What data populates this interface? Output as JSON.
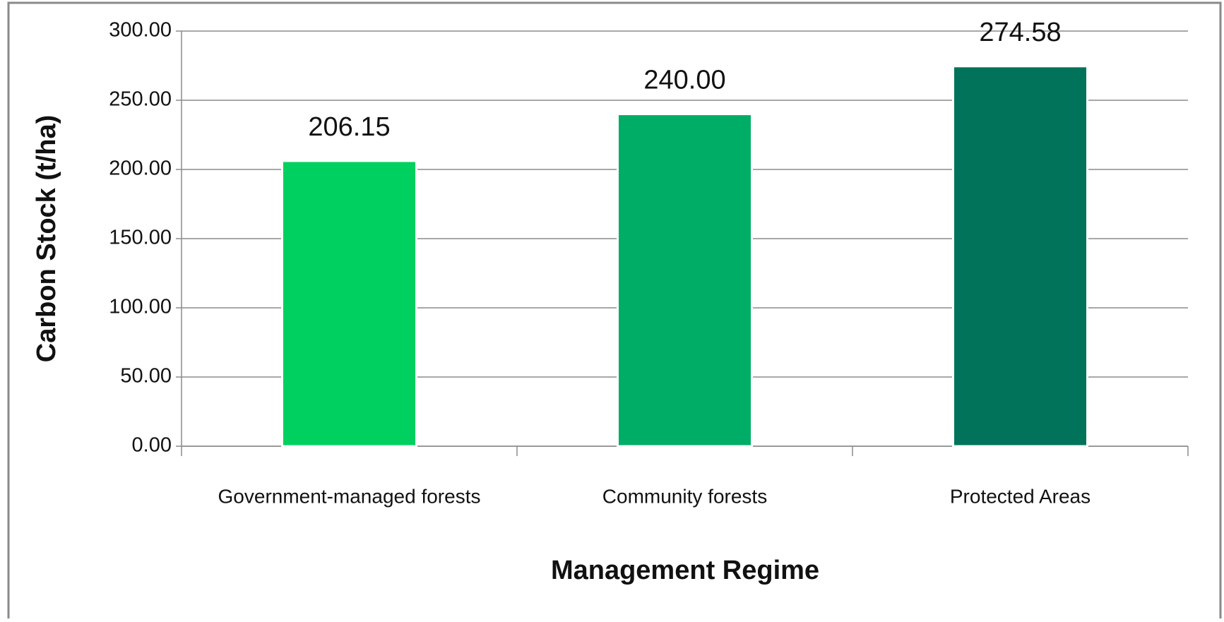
{
  "chart_data": {
    "type": "bar",
    "x_label": "Management Regime",
    "y_label": "Carbon Stock (t/ha)",
    "categories": [
      "Government-managed forests",
      "Community forests",
      "Protected Areas"
    ],
    "values": [
      206.15,
      240,
      274.58
    ],
    "value_labels": [
      "206.15",
      "240.00",
      "274.58"
    ],
    "colors": [
      "#00d05f",
      "#00ad66",
      "#00735a"
    ],
    "ylim": [
      0,
      300
    ],
    "yticks": [
      {
        "value": 0,
        "label": "0.00"
      },
      {
        "value": 50,
        "label": "50.00"
      },
      {
        "value": 100,
        "label": "100.00"
      },
      {
        "value": 150,
        "label": "150.00"
      },
      {
        "value": 200,
        "label": "200.00"
      },
      {
        "value": 250,
        "label": "250.00"
      },
      {
        "value": 300,
        "label": "300.00"
      }
    ],
    "grid": true
  }
}
